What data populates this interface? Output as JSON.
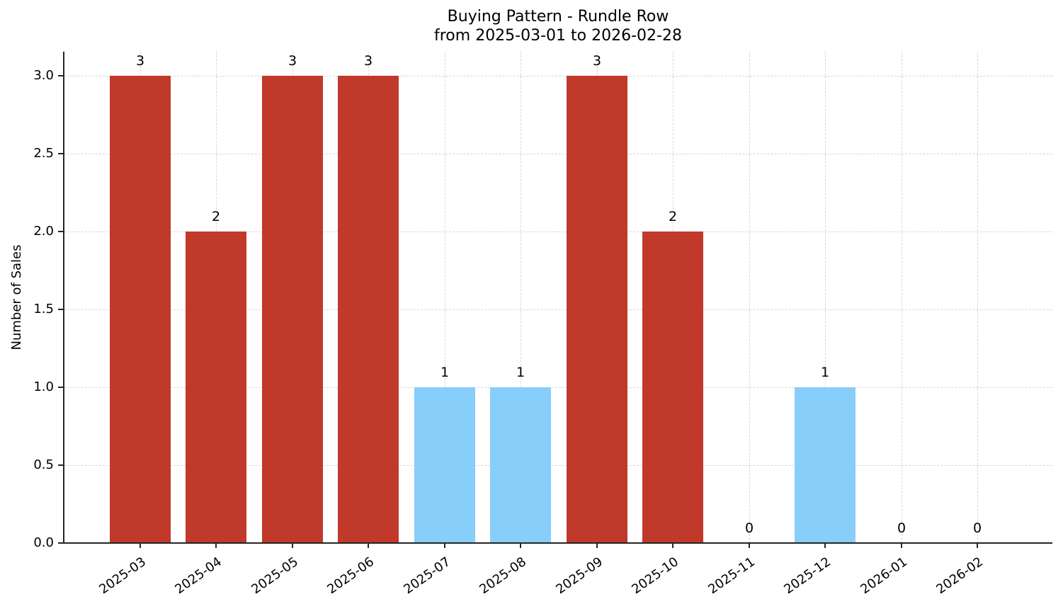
{
  "chart_data": {
    "type": "bar",
    "title": "Buying Pattern - Rundle Row",
    "subtitle": "from 2025-03-01 to 2026-02-28",
    "xlabel": "",
    "ylabel": "Number of Sales",
    "categories": [
      "2025-03",
      "2025-04",
      "2025-05",
      "2025-06",
      "2025-07",
      "2025-08",
      "2025-09",
      "2025-10",
      "2025-11",
      "2025-12",
      "2026-01",
      "2026-02"
    ],
    "values": [
      3,
      2,
      3,
      3,
      1,
      1,
      3,
      2,
      0,
      1,
      0,
      0
    ],
    "value_labels": [
      "3",
      "2",
      "3",
      "3",
      "1",
      "1",
      "3",
      "2",
      "0",
      "1",
      "0",
      "0"
    ],
    "bar_colors": [
      "#C0392B",
      "#C0392B",
      "#C0392B",
      "#C0392B",
      "#87CEFA",
      "#87CEFA",
      "#C0392B",
      "#C0392B",
      "#87CEFA",
      "#87CEFA",
      "#87CEFA",
      "#87CEFA"
    ],
    "colors": {
      "high": "#C0392B",
      "low": "#87CEFA"
    },
    "yticks": [
      0.0,
      0.5,
      1.0,
      1.5,
      2.0,
      2.5,
      3.0
    ],
    "ytick_labels": [
      "0.0",
      "0.5",
      "1.0",
      "1.5",
      "2.0",
      "2.5",
      "3.0"
    ],
    "ylim": [
      0,
      3.15
    ],
    "grid": true,
    "grid_style": "dashed",
    "legend": null,
    "xtick_rotation": 35
  }
}
